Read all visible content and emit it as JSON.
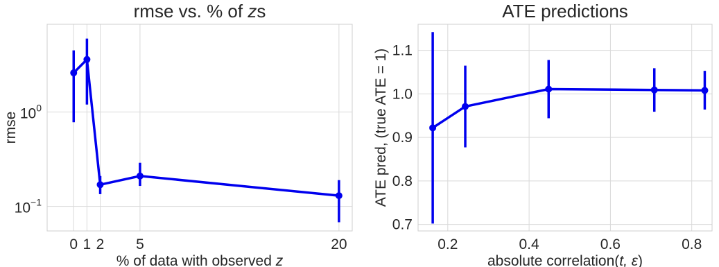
{
  "chart_data": [
    {
      "type": "line",
      "title_plain": "rmse vs. % of ",
      "title_var": "z",
      "title_suffix": "s",
      "xlabel_plain": "% of data with observed ",
      "xlabel_var": "z",
      "ylabel": "rmse",
      "yscale": "log",
      "xlim": [
        -2,
        21
      ],
      "ylim": [
        0.055,
        8.5
      ],
      "grid": true,
      "color": "#0000ee",
      "x_ticks": [
        0,
        1,
        2,
        5,
        20
      ],
      "y_ticks": [
        {
          "value": 1,
          "base": "10",
          "exp": "0"
        },
        {
          "value": 0.1,
          "base": "10",
          "exp": "−1"
        }
      ],
      "x": [
        0,
        1,
        2,
        5,
        20
      ],
      "values": [
        2.6,
        3.6,
        0.17,
        0.21,
        0.13
      ],
      "err_low": [
        0.78,
        1.2,
        0.135,
        0.165,
        0.068
      ],
      "err_high": [
        4.5,
        6.0,
        0.21,
        0.29,
        0.19
      ]
    },
    {
      "type": "line",
      "title": "ATE predictions",
      "xlabel_plain": "absolute correlation(",
      "xlabel_math": "t, ε",
      "xlabel_close": ")",
      "ylabel": "ATE pred, (true ATE = 1)",
      "xlim": [
        0.127,
        0.85
      ],
      "ylim": [
        0.685,
        1.16
      ],
      "grid": true,
      "color": "#0000ee",
      "x_ticks": [
        0.2,
        0.4,
        0.6,
        0.8
      ],
      "x_tick_labels": [
        "0.2",
        "0.4",
        "0.6",
        "0.8"
      ],
      "y_ticks": [
        0.7,
        0.8,
        0.9,
        1.0,
        1.1
      ],
      "y_tick_labels": [
        "0.7",
        "0.8",
        "0.9",
        "1.0",
        "1.1"
      ],
      "x": [
        0.163,
        0.243,
        0.448,
        0.708,
        0.832
      ],
      "values": [
        0.922,
        0.971,
        1.011,
        1.009,
        1.008
      ],
      "err_low": [
        0.702,
        0.877,
        0.944,
        0.959,
        0.964
      ],
      "err_high": [
        1.142,
        1.065,
        1.078,
        1.059,
        1.053
      ]
    }
  ]
}
